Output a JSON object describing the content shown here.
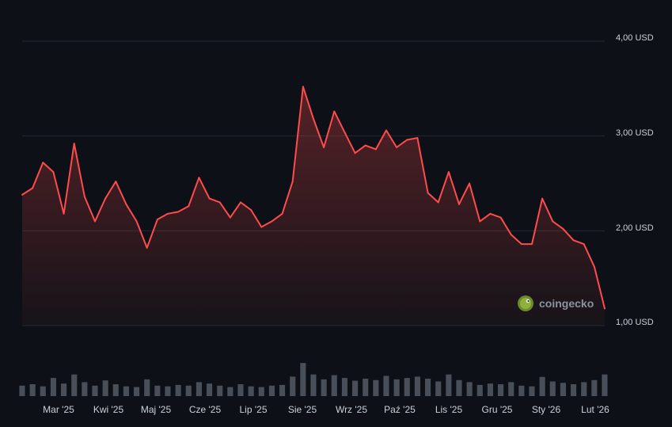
{
  "chart_data": {
    "type": "area",
    "x_unit": "week",
    "x_start_label": "Mar '25",
    "y_unit": "USD",
    "ylim": [
      1.0,
      4.0
    ],
    "y_ticks": [
      "4,00 USD",
      "3,00 USD",
      "2,00 USD",
      "1,00 USD"
    ],
    "x_ticks": [
      "Mar '25",
      "Kwi '25",
      "Maj '25",
      "Cze '25",
      "Lip '25",
      "Sie '25",
      "Wrz '25",
      "Paź '25",
      "Lis '25",
      "Gru '25",
      "Sty '26",
      "Lut '26"
    ],
    "grid": true,
    "line_color": "#ff4b4b",
    "series": [
      {
        "values": [
          2.38,
          2.45,
          2.72,
          2.62,
          2.18,
          2.92,
          2.36,
          2.1,
          2.34,
          2.52,
          2.28,
          2.1,
          1.82,
          2.12,
          2.18,
          2.2,
          2.26,
          2.56,
          2.34,
          2.3,
          2.14,
          2.3,
          2.22,
          2.04,
          2.1,
          2.18,
          2.52,
          3.52,
          3.18,
          2.88,
          3.26,
          3.04,
          2.82,
          2.9,
          2.86,
          3.06,
          2.88,
          2.96,
          2.98,
          2.4,
          2.3,
          2.62,
          2.28,
          2.5,
          2.1,
          2.18,
          2.14,
          1.96,
          1.86,
          1.86,
          2.34,
          2.1,
          2.02,
          1.9,
          1.86,
          1.62,
          1.18
        ]
      }
    ],
    "volume": {
      "color": "#5d6470",
      "values": [
        0.3,
        0.34,
        0.28,
        0.52,
        0.36,
        0.62,
        0.4,
        0.3,
        0.45,
        0.34,
        0.28,
        0.26,
        0.48,
        0.3,
        0.28,
        0.32,
        0.3,
        0.4,
        0.36,
        0.3,
        0.26,
        0.34,
        0.28,
        0.26,
        0.3,
        0.32,
        0.56,
        0.95,
        0.62,
        0.48,
        0.6,
        0.52,
        0.44,
        0.5,
        0.46,
        0.58,
        0.48,
        0.52,
        0.56,
        0.5,
        0.42,
        0.62,
        0.46,
        0.4,
        0.32,
        0.36,
        0.34,
        0.4,
        0.3,
        0.28,
        0.55,
        0.42,
        0.38,
        0.34,
        0.4,
        0.46,
        0.62
      ]
    }
  },
  "watermark": {
    "text": "coingecko",
    "icon": "gecko-logo-icon"
  }
}
